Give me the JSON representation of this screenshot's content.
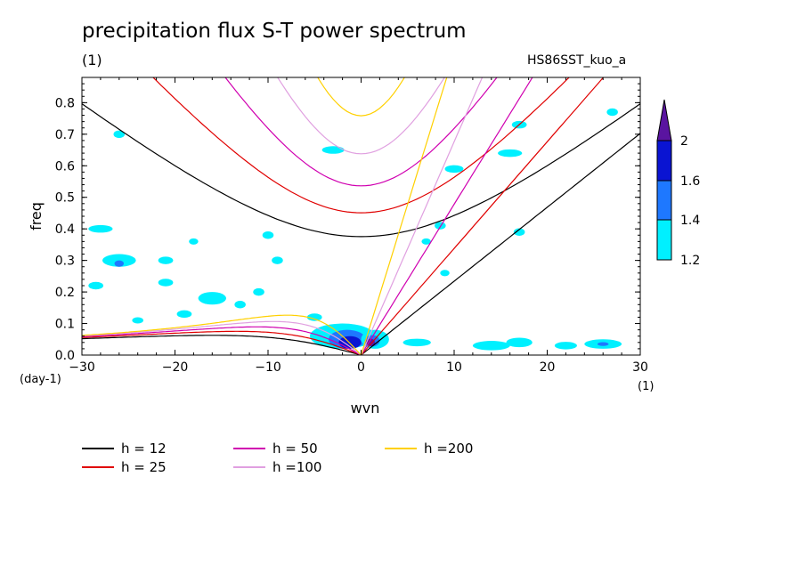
{
  "chart_data": {
    "type": "line",
    "title": "precipitation flux S-T power spectrum",
    "units_label": "(1)",
    "run_name": "HS86SST_kuo_a",
    "xlabel": "wvn",
    "ylabel": "freq",
    "x_unit_label": "(1)",
    "y_unit_label": "(day-1)",
    "xlim": [
      -30,
      30
    ],
    "ylim": [
      0,
      0.88
    ],
    "xticks": [
      -30,
      -20,
      -10,
      0,
      10,
      20,
      30
    ],
    "yticks": [
      0.0,
      0.1,
      0.2,
      0.3,
      0.4,
      0.5,
      0.6,
      0.7,
      0.8
    ],
    "colorbar": {
      "levels": [
        1.2,
        1.4,
        1.6,
        2
      ],
      "colors": [
        "#00f0ff",
        "#1e78ff",
        "#0a14d2",
        "#5a14a0"
      ]
    },
    "series": [
      {
        "name": "h = 12",
        "h": 12,
        "color": "#000000"
      },
      {
        "name": "h = 25",
        "h": 25,
        "color": "#e00000"
      },
      {
        "name": "h = 50",
        "h": 50,
        "color": "#d000b0"
      },
      {
        "name": "h =100",
        "h": 100,
        "color": "#e0a0e0"
      },
      {
        "name": "h =200",
        "h": 200,
        "color": "#ffd000"
      }
    ],
    "contour_blobs": [
      {
        "x": -28,
        "y": 0.4,
        "rx": 1.3,
        "ry": 0.012,
        "level": 0
      },
      {
        "x": -26,
        "y": 0.7,
        "rx": 0.6,
        "ry": 0.012,
        "level": 0
      },
      {
        "x": -26,
        "y": 0.3,
        "rx": 1.8,
        "ry": 0.02,
        "level": 0
      },
      {
        "x": -26,
        "y": 0.29,
        "rx": 0.5,
        "ry": 0.01,
        "level": 1
      },
      {
        "x": -28.5,
        "y": 0.22,
        "rx": 0.8,
        "ry": 0.012,
        "level": 0
      },
      {
        "x": -21,
        "y": 0.3,
        "rx": 0.8,
        "ry": 0.012,
        "level": 0
      },
      {
        "x": -21,
        "y": 0.23,
        "rx": 0.8,
        "ry": 0.012,
        "level": 0
      },
      {
        "x": -18,
        "y": 0.36,
        "rx": 0.5,
        "ry": 0.01,
        "level": 0
      },
      {
        "x": -16,
        "y": 0.18,
        "rx": 1.5,
        "ry": 0.02,
        "level": 0
      },
      {
        "x": -19,
        "y": 0.13,
        "rx": 0.8,
        "ry": 0.012,
        "level": 0
      },
      {
        "x": -11,
        "y": 0.2,
        "rx": 0.6,
        "ry": 0.012,
        "level": 0
      },
      {
        "x": -13,
        "y": 0.16,
        "rx": 0.6,
        "ry": 0.012,
        "level": 0
      },
      {
        "x": -24,
        "y": 0.11,
        "rx": 0.6,
        "ry": 0.01,
        "level": 0
      },
      {
        "x": -10,
        "y": 0.38,
        "rx": 0.6,
        "ry": 0.012,
        "level": 0
      },
      {
        "x": -9,
        "y": 0.3,
        "rx": 0.6,
        "ry": 0.012,
        "level": 0
      },
      {
        "x": -3,
        "y": 0.65,
        "rx": 1.2,
        "ry": 0.012,
        "level": 0
      },
      {
        "x": 16,
        "y": 0.64,
        "rx": 1.3,
        "ry": 0.012,
        "level": 0
      },
      {
        "x": 17,
        "y": 0.73,
        "rx": 0.8,
        "ry": 0.012,
        "level": 0
      },
      {
        "x": 10,
        "y": 0.59,
        "rx": 1.0,
        "ry": 0.012,
        "level": 0
      },
      {
        "x": 27,
        "y": 0.77,
        "rx": 0.6,
        "ry": 0.012,
        "level": 0
      },
      {
        "x": 8.5,
        "y": 0.41,
        "rx": 0.6,
        "ry": 0.012,
        "level": 0
      },
      {
        "x": 17,
        "y": 0.39,
        "rx": 0.6,
        "ry": 0.012,
        "level": 0
      },
      {
        "x": 7,
        "y": 0.36,
        "rx": 0.5,
        "ry": 0.01,
        "level": 0
      },
      {
        "x": 9,
        "y": 0.26,
        "rx": 0.5,
        "ry": 0.01,
        "level": 0
      },
      {
        "x": 6,
        "y": 0.04,
        "rx": 1.5,
        "ry": 0.012,
        "level": 0
      },
      {
        "x": 14,
        "y": 0.03,
        "rx": 2.0,
        "ry": 0.015,
        "level": 0
      },
      {
        "x": 17,
        "y": 0.04,
        "rx": 1.4,
        "ry": 0.015,
        "level": 0
      },
      {
        "x": 22,
        "y": 0.03,
        "rx": 1.2,
        "ry": 0.012,
        "level": 0
      },
      {
        "x": 26,
        "y": 0.035,
        "rx": 2.0,
        "ry": 0.015,
        "level": 0
      },
      {
        "x": 26,
        "y": 0.035,
        "rx": 0.6,
        "ry": 0.006,
        "level": 1
      },
      {
        "x": -5,
        "y": 0.12,
        "rx": 0.8,
        "ry": 0.012,
        "level": 0
      },
      {
        "x": -2,
        "y": 0.06,
        "rx": 3.5,
        "ry": 0.04,
        "level": 0
      },
      {
        "x": -1.5,
        "y": 0.05,
        "rx": 2.0,
        "ry": 0.03,
        "level": 1
      },
      {
        "x": -1.2,
        "y": 0.04,
        "rx": 1.2,
        "ry": 0.02,
        "level": 2
      },
      {
        "x": 1.5,
        "y": 0.05,
        "rx": 1.5,
        "ry": 0.03,
        "level": 0
      },
      {
        "x": 1.2,
        "y": 0.045,
        "rx": 0.8,
        "ry": 0.018,
        "level": 1
      },
      {
        "x": 1.0,
        "y": 0.04,
        "rx": 0.5,
        "ry": 0.012,
        "level": 3
      }
    ]
  }
}
